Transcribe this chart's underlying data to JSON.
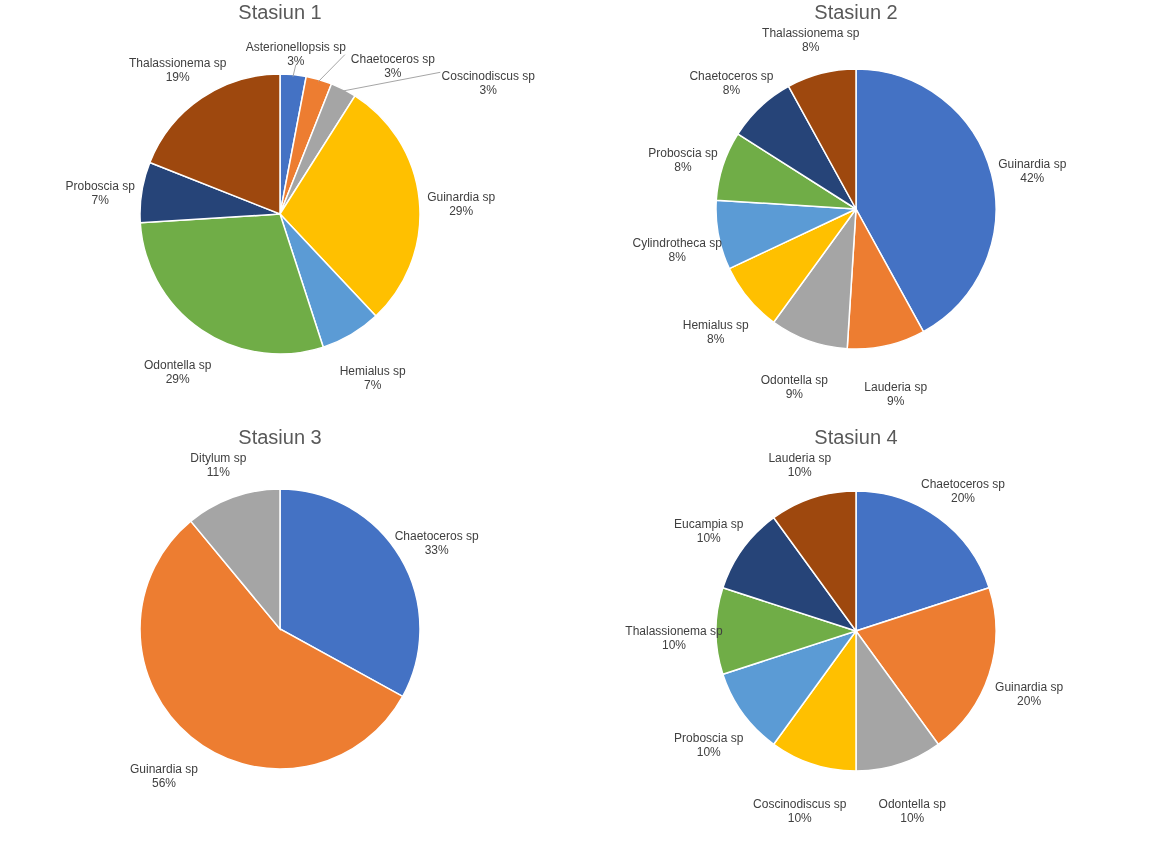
{
  "chart_data": [
    {
      "type": "pie",
      "title": "Stasiun 1",
      "categories": [
        "Asterionellopsis sp",
        "Chaetoceros sp",
        "Coscinodiscus sp",
        "Guinardia sp",
        "Hemialus sp",
        "Odontella sp",
        "Proboscia sp",
        "Thalassionema sp"
      ],
      "values": [
        3,
        3,
        3,
        29,
        7,
        29,
        7,
        19
      ],
      "value_labels": [
        "3%",
        "3%",
        "3%",
        "29%",
        "7%",
        "29%",
        "7%",
        "19%"
      ],
      "colors": [
        "#4472c4",
        "#ed7d31",
        "#a5a5a5",
        "#ffc000",
        "#5b9bd5",
        "#70ad47",
        "#264478",
        "#9e480e"
      ]
    },
    {
      "type": "pie",
      "title": "Stasiun 2",
      "categories": [
        "Guinardia sp",
        "Lauderia sp",
        "Odontella sp",
        "Hemialus sp",
        "Cylindrotheca sp",
        "Proboscia sp",
        "Chaetoceros sp",
        "Thalassionema sp"
      ],
      "values": [
        42,
        9,
        9,
        8,
        8,
        8,
        8,
        8
      ],
      "value_labels": [
        "42%",
        "9%",
        "9%",
        "8%",
        "8%",
        "8%",
        "8%",
        "8%"
      ],
      "colors": [
        "#4472c4",
        "#ed7d31",
        "#a5a5a5",
        "#ffc000",
        "#5b9bd5",
        "#70ad47",
        "#264478",
        "#9e480e"
      ]
    },
    {
      "type": "pie",
      "title": "Stasiun 3",
      "categories": [
        "Chaetoceros sp",
        "Guinardia sp",
        "Ditylum sp"
      ],
      "values": [
        33,
        56,
        11
      ],
      "value_labels": [
        "33%",
        "56%",
        "11%"
      ],
      "colors": [
        "#4472c4",
        "#ed7d31",
        "#a5a5a5"
      ]
    },
    {
      "type": "pie",
      "title": "Stasiun 4",
      "categories": [
        "Chaetoceros sp",
        "Guinardia sp",
        "Odontella sp",
        "Coscinodiscus sp",
        "Proboscia sp",
        "Thalassionema sp",
        "Eucampia sp",
        "Lauderia sp"
      ],
      "values": [
        20,
        20,
        10,
        10,
        10,
        10,
        10,
        10
      ],
      "value_labels": [
        "20%",
        "20%",
        "10%",
        "10%",
        "10%",
        "10%",
        "10%",
        "10%"
      ],
      "colors": [
        "#4472c4",
        "#ed7d31",
        "#a5a5a5",
        "#ffc000",
        "#5b9bd5",
        "#70ad47",
        "#264478",
        "#9e480e"
      ]
    }
  ]
}
